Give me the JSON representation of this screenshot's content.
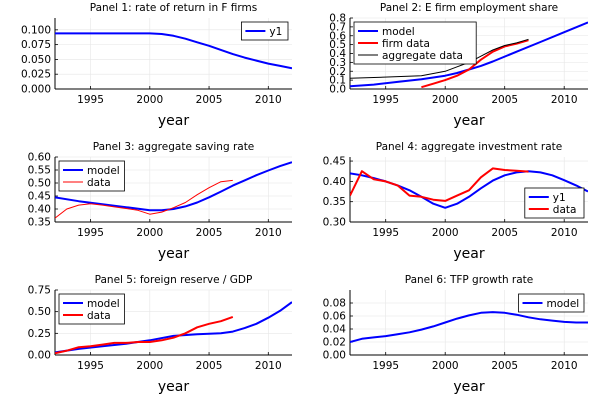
{
  "figure": {
    "background": "#ffffff",
    "grid": true
  },
  "chart_data": [
    {
      "type": "line",
      "title": "Panel 1: rate of return in F firms",
      "xlabel": "year",
      "ylabel": "",
      "xlim": [
        1992,
        2012
      ],
      "ylim": [
        0,
        0.12
      ],
      "xticks": [
        1995,
        2000,
        2005,
        2010
      ],
      "yticks": [
        0.0,
        0.025,
        0.05,
        0.075,
        0.1
      ],
      "ytick_labels": [
        "0.000",
        "0.025",
        "0.050",
        "0.075",
        "0.100"
      ],
      "legend_position": "top-right",
      "series": [
        {
          "name": "y1",
          "color": "#0000ff",
          "width": 2,
          "x": [
            1992,
            1994,
            1996,
            1998,
            2000,
            2001,
            2002,
            2003,
            2004,
            2005,
            2006,
            2007,
            2008,
            2009,
            2010,
            2011,
            2012
          ],
          "y": [
            0.094,
            0.094,
            0.094,
            0.094,
            0.094,
            0.093,
            0.09,
            0.085,
            0.079,
            0.073,
            0.066,
            0.059,
            0.053,
            0.048,
            0.043,
            0.039,
            0.035
          ]
        }
      ]
    },
    {
      "type": "line",
      "title": "Panel 2: E firm employment share",
      "xlabel": "year",
      "ylabel": "",
      "xlim": [
        1992,
        2012
      ],
      "ylim": [
        0,
        0.8
      ],
      "xticks": [
        1995,
        2000,
        2005,
        2010
      ],
      "yticks": [
        0.0,
        0.1,
        0.2,
        0.3,
        0.4,
        0.5,
        0.6,
        0.7,
        0.8
      ],
      "ytick_labels": [
        "0.0",
        "0.1",
        "0.2",
        "0.3",
        "0.4",
        "0.5",
        "0.6",
        "0.7",
        "0.8"
      ],
      "legend_position": "top-left",
      "series": [
        {
          "name": "model",
          "color": "#0000ff",
          "width": 2,
          "x": [
            1992,
            1994,
            1996,
            1998,
            2000,
            2001,
            2002,
            2003,
            2004,
            2006,
            2008,
            2010,
            2012
          ],
          "y": [
            0.03,
            0.05,
            0.08,
            0.11,
            0.15,
            0.18,
            0.22,
            0.26,
            0.31,
            0.42,
            0.53,
            0.64,
            0.75
          ]
        },
        {
          "name": "firm data",
          "color": "#ff0000",
          "width": 2,
          "x": [
            1998,
            1999,
            2000,
            2001,
            2002,
            2003,
            2004,
            2005,
            2006,
            2007
          ],
          "y": [
            0.02,
            0.06,
            0.1,
            0.15,
            0.22,
            0.33,
            0.42,
            0.48,
            0.51,
            0.55
          ]
        },
        {
          "name": "aggregate data",
          "color": "#000000",
          "width": 1,
          "x": [
            1992,
            1994,
            1996,
            1998,
            2000,
            2001,
            2002,
            2003,
            2004,
            2005,
            2006,
            2007
          ],
          "y": [
            0.12,
            0.13,
            0.14,
            0.15,
            0.2,
            0.25,
            0.3,
            0.37,
            0.44,
            0.49,
            0.52,
            0.56
          ]
        }
      ]
    },
    {
      "type": "line",
      "title": "Panel 3: aggregate saving rate",
      "xlabel": "year",
      "ylabel": "",
      "xlim": [
        1992,
        2012
      ],
      "ylim": [
        0.35,
        0.6
      ],
      "xticks": [
        1995,
        2000,
        2005,
        2010
      ],
      "yticks": [
        0.35,
        0.4,
        0.45,
        0.5,
        0.55,
        0.6
      ],
      "ytick_labels": [
        "0.35",
        "0.40",
        "0.45",
        "0.50",
        "0.55",
        "0.60"
      ],
      "legend_position": "top-left",
      "series": [
        {
          "name": "model",
          "color": "#0000ff",
          "width": 2,
          "x": [
            1992,
            1994,
            1996,
            1998,
            2000,
            2001,
            2002,
            2003,
            2004,
            2005,
            2006,
            2007,
            2008,
            2009,
            2010,
            2011,
            2012
          ],
          "y": [
            0.445,
            0.43,
            0.418,
            0.407,
            0.395,
            0.395,
            0.4,
            0.41,
            0.425,
            0.445,
            0.467,
            0.49,
            0.51,
            0.53,
            0.548,
            0.565,
            0.58
          ]
        },
        {
          "name": "data",
          "color": "#ff0000",
          "width": 1,
          "x": [
            1992,
            1993,
            1994,
            1995,
            1996,
            1997,
            1998,
            1999,
            2000,
            2001,
            2002,
            2003,
            2004,
            2005,
            2006,
            2007
          ],
          "y": [
            0.365,
            0.4,
            0.415,
            0.42,
            0.415,
            0.408,
            0.402,
            0.395,
            0.38,
            0.388,
            0.405,
            0.425,
            0.455,
            0.482,
            0.505,
            0.51
          ]
        }
      ]
    },
    {
      "type": "line",
      "title": "Panel 4: aggregate investment rate",
      "xlabel": "year",
      "ylabel": "",
      "xlim": [
        1992,
        2012
      ],
      "ylim": [
        0.3,
        0.46
      ],
      "xticks": [
        1995,
        2000,
        2005,
        2010
      ],
      "yticks": [
        0.3,
        0.35,
        0.4,
        0.45
      ],
      "ytick_labels": [
        "0.30",
        "0.35",
        "0.40",
        "0.45"
      ],
      "legend_position": "bottom-right",
      "series": [
        {
          "name": "y1",
          "color": "#0000ff",
          "width": 2,
          "x": [
            1992,
            1993,
            1994,
            1995,
            1996,
            1997,
            1998,
            1999,
            2000,
            2001,
            2002,
            2003,
            2004,
            2005,
            2006,
            2007,
            2008,
            2009,
            2010,
            2011,
            2012
          ],
          "y": [
            0.42,
            0.415,
            0.408,
            0.4,
            0.39,
            0.378,
            0.362,
            0.345,
            0.335,
            0.345,
            0.362,
            0.383,
            0.402,
            0.415,
            0.422,
            0.425,
            0.422,
            0.415,
            0.403,
            0.39,
            0.375
          ]
        },
        {
          "name": "data",
          "color": "#ff0000",
          "width": 2,
          "x": [
            1992,
            1993,
            1994,
            1995,
            1996,
            1997,
            1998,
            1999,
            2000,
            2001,
            2002,
            2003,
            2004,
            2005,
            2006,
            2007
          ],
          "y": [
            0.365,
            0.425,
            0.405,
            0.4,
            0.39,
            0.365,
            0.362,
            0.355,
            0.352,
            0.365,
            0.378,
            0.41,
            0.432,
            0.428,
            0.426,
            0.424
          ]
        }
      ]
    },
    {
      "type": "line",
      "title": "Panel 5: foreign reserve / GDP",
      "xlabel": "year",
      "ylabel": "",
      "xlim": [
        1992,
        2012
      ],
      "ylim": [
        0,
        0.75
      ],
      "xticks": [
        1995,
        2000,
        2005,
        2010
      ],
      "yticks": [
        0.0,
        0.25,
        0.5,
        0.75
      ],
      "ytick_labels": [
        "0.00",
        "0.25",
        "0.50",
        "0.75"
      ],
      "legend_position": "top-left",
      "series": [
        {
          "name": "model",
          "color": "#0000ff",
          "width": 2,
          "x": [
            1992,
            1994,
            1996,
            1998,
            2000,
            2002,
            2004,
            2006,
            2007,
            2008,
            2009,
            2010,
            2011,
            2012
          ],
          "y": [
            0.03,
            0.07,
            0.1,
            0.13,
            0.17,
            0.22,
            0.24,
            0.25,
            0.27,
            0.31,
            0.36,
            0.43,
            0.51,
            0.61
          ]
        },
        {
          "name": "data",
          "color": "#ff0000",
          "width": 2,
          "x": [
            1992,
            1993,
            1994,
            1995,
            1996,
            1997,
            1998,
            1999,
            2000,
            2001,
            2002,
            2003,
            2004,
            2005,
            2006,
            2007
          ],
          "y": [
            0.02,
            0.05,
            0.09,
            0.1,
            0.12,
            0.14,
            0.14,
            0.15,
            0.15,
            0.17,
            0.2,
            0.25,
            0.32,
            0.36,
            0.39,
            0.44
          ]
        }
      ]
    },
    {
      "type": "line",
      "title": "Panel 6: TFP growth rate",
      "xlabel": "year",
      "ylabel": "",
      "xlim": [
        1992,
        2012
      ],
      "ylim": [
        0,
        0.1
      ],
      "xticks": [
        1995,
        2000,
        2005,
        2010
      ],
      "yticks": [
        0.0,
        0.02,
        0.04,
        0.06,
        0.08
      ],
      "ytick_labels": [
        "0.00",
        "0.02",
        "0.04",
        "0.06",
        "0.08"
      ],
      "legend_position": "top-right",
      "series": [
        {
          "name": "model",
          "color": "#0000ff",
          "width": 2,
          "x": [
            1992,
            1993,
            1994,
            1995,
            1996,
            1997,
            1998,
            1999,
            2000,
            2001,
            2002,
            2003,
            2004,
            2005,
            2006,
            2007,
            2008,
            2009,
            2010,
            2011,
            2012
          ],
          "y": [
            0.02,
            0.025,
            0.027,
            0.029,
            0.032,
            0.035,
            0.039,
            0.044,
            0.05,
            0.056,
            0.061,
            0.065,
            0.066,
            0.065,
            0.062,
            0.058,
            0.055,
            0.053,
            0.051,
            0.05,
            0.05
          ]
        }
      ]
    }
  ]
}
